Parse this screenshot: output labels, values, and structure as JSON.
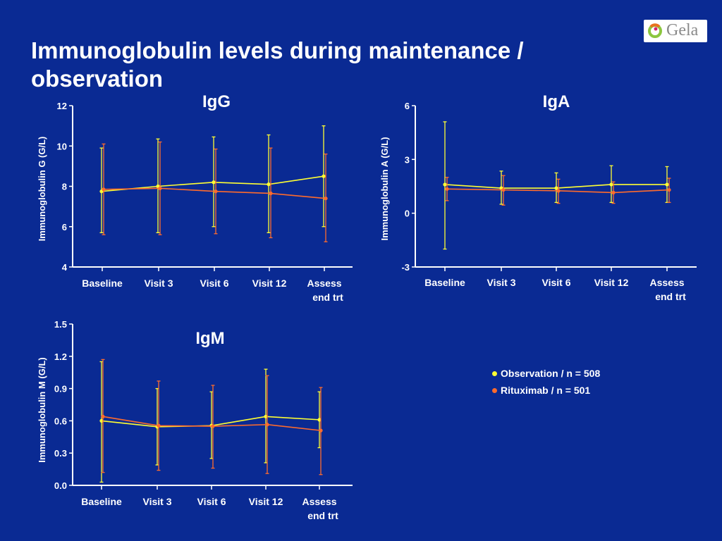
{
  "slide": {
    "title": "Immunoglobulin levels during maintenance / observation",
    "logo_text": "Gela"
  },
  "colors": {
    "background": "#0a2a93",
    "observation": "#ffff33",
    "rituximab": "#ff6b2c",
    "axis": "#ffffff"
  },
  "legend": {
    "items": [
      {
        "label": "Observation / n = 508",
        "color": "#ffff33"
      },
      {
        "label": "Rituximab / n = 501",
        "color": "#ff6b2c"
      }
    ]
  },
  "chart_data": [
    {
      "type": "line",
      "title": "IgG",
      "ylabel": "Immunoglobulin G (G/L)",
      "categories": [
        "Baseline",
        "Visit 3",
        "Visit 6",
        "Visit 12",
        "Assess\nend trt"
      ],
      "ylim": [
        4,
        12
      ],
      "yticks": [
        4,
        6,
        8,
        10,
        12
      ],
      "ytick_labels": [
        "4",
        "6",
        "8",
        "10",
        "12"
      ],
      "series": [
        {
          "name": "Observation / n = 508",
          "values": [
            7.75,
            8.0,
            8.2,
            8.1,
            8.5
          ],
          "err_low": [
            5.7,
            5.7,
            6.0,
            5.7,
            6.0
          ],
          "err_high": [
            9.9,
            10.35,
            10.45,
            10.55,
            11.0
          ]
        },
        {
          "name": "Rituximab / n = 501",
          "values": [
            7.85,
            7.9,
            7.75,
            7.65,
            7.4
          ],
          "err_low": [
            5.6,
            5.6,
            5.65,
            5.45,
            5.25
          ],
          "err_high": [
            10.1,
            10.2,
            9.85,
            9.9,
            9.6
          ]
        }
      ]
    },
    {
      "type": "line",
      "title": "IgA",
      "ylabel": "Immunoglobulin A (G/L)",
      "categories": [
        "Baseline",
        "Visit 3",
        "Visit 6",
        "Visit 12",
        "Assess\nend trt"
      ],
      "ylim": [
        -3,
        6
      ],
      "yticks": [
        -3,
        0,
        3,
        6
      ],
      "ytick_labels": [
        "-3",
        "0",
        "3",
        "6"
      ],
      "series": [
        {
          "name": "Observation / n = 508",
          "values": [
            1.6,
            1.4,
            1.4,
            1.6,
            1.6
          ],
          "err_low": [
            -2.0,
            0.5,
            0.6,
            0.6,
            0.6
          ],
          "err_high": [
            5.1,
            2.35,
            2.25,
            2.65,
            2.6
          ]
        },
        {
          "name": "Rituximab / n = 501",
          "values": [
            1.35,
            1.3,
            1.25,
            1.15,
            1.3
          ],
          "err_low": [
            0.7,
            0.45,
            0.55,
            0.55,
            0.6
          ],
          "err_high": [
            2.0,
            2.1,
            1.9,
            1.75,
            1.95
          ]
        }
      ]
    },
    {
      "type": "line",
      "title": "IgM",
      "ylabel": "Immunoglobulin M (G/L)",
      "categories": [
        "Baseline",
        "Visit 3",
        "Visit 6",
        "Visit 12",
        "Assess\nend trt"
      ],
      "ylim": [
        0.0,
        1.5
      ],
      "yticks": [
        0.0,
        0.3,
        0.6,
        0.9,
        1.2,
        1.5
      ],
      "ytick_labels": [
        "0.0",
        "0.3",
        "0.6",
        "0.9",
        "1.2",
        "1.5"
      ],
      "series": [
        {
          "name": "Observation / n = 508",
          "values": [
            0.6,
            0.545,
            0.555,
            0.64,
            0.61
          ],
          "err_low": [
            0.03,
            0.19,
            0.25,
            0.21,
            0.35
          ],
          "err_high": [
            1.15,
            0.9,
            0.87,
            1.08,
            0.87
          ]
        },
        {
          "name": "Rituximab / n = 501",
          "values": [
            0.64,
            0.555,
            0.55,
            0.565,
            0.51
          ],
          "err_low": [
            0.12,
            0.14,
            0.16,
            0.11,
            0.1
          ],
          "err_high": [
            1.17,
            0.97,
            0.93,
            1.02,
            0.91
          ]
        }
      ]
    }
  ]
}
